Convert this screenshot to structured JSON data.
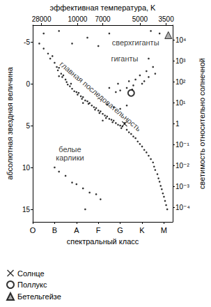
{
  "chart_data": {
    "type": "scatter",
    "xlabel": "спектральный класс",
    "ylabel": "абсолютная звездная величина",
    "y2label": "светимость относительно солнечной",
    "x2label": "эффективная температура, K",
    "xlim": [
      0,
      6.4
    ],
    "xticks": [
      {
        "value": 0,
        "label": "O"
      },
      {
        "value": 1,
        "label": "B"
      },
      {
        "value": 2,
        "label": "A"
      },
      {
        "value": 3,
        "label": "F"
      },
      {
        "value": 4,
        "label": "G"
      },
      {
        "value": 5,
        "label": "K"
      },
      {
        "value": 6,
        "label": "M"
      }
    ],
    "x2ticks": [
      {
        "value": 28000,
        "x": 0.4
      },
      {
        "value": 10000,
        "x": 2.05
      },
      {
        "value": 7000,
        "x": 3.2
      },
      {
        "value": 5000,
        "x": 4.9
      },
      {
        "value": 3500,
        "x": 6.1
      }
    ],
    "ylim": [
      16.5,
      -7
    ],
    "yticks": [
      -5,
      0,
      5,
      10,
      15
    ],
    "y2lim": [
      2.089e-05,
      52481
    ],
    "y2ticks": [
      {
        "value": 10000,
        "label": "10⁴"
      },
      {
        "value": 1000,
        "label": "10³"
      },
      {
        "value": 100,
        "label": "10²"
      },
      {
        "value": 10,
        "label": "10¹"
      },
      1,
      {
        "value": 0.1,
        "label": "10⁻¹"
      },
      {
        "value": 0.01,
        "label": "10⁻²"
      },
      {
        "value": 0.001,
        "label": "10⁻³"
      },
      {
        "value": 0.0001,
        "label": "10⁻⁴"
      }
    ],
    "log": "y2",
    "grid": false,
    "legend": "bottom-left",
    "series": [
      {
        "marker": "dot",
        "color": "#000000",
        "points": [
          [
            0.3,
            -4.8
          ],
          [
            0.5,
            -4.2
          ],
          [
            0.7,
            -3.6
          ],
          [
            0.8,
            -3.0
          ],
          [
            0.9,
            -3.3
          ],
          [
            1.0,
            -2.5
          ],
          [
            1.1,
            -2.0
          ],
          [
            1.15,
            -1.6
          ],
          [
            1.2,
            -1.9
          ],
          [
            1.3,
            -1.2
          ],
          [
            1.35,
            -0.8
          ],
          [
            1.4,
            -1.0
          ],
          [
            1.5,
            -0.5
          ],
          [
            1.55,
            -0.2
          ],
          [
            1.6,
            0.1
          ],
          [
            1.7,
            0.3
          ],
          [
            1.75,
            0.0
          ],
          [
            1.8,
            0.6
          ],
          [
            1.9,
            0.9
          ],
          [
            2.0,
            1.0
          ],
          [
            2.05,
            1.3
          ],
          [
            2.1,
            1.1
          ],
          [
            2.2,
            1.5
          ],
          [
            2.25,
            1.8
          ],
          [
            2.3,
            1.6
          ],
          [
            2.4,
            2.0
          ],
          [
            2.5,
            2.1
          ],
          [
            2.55,
            2.4
          ],
          [
            2.6,
            2.3
          ],
          [
            2.7,
            2.6
          ],
          [
            2.8,
            2.8
          ],
          [
            2.85,
            3.1
          ],
          [
            2.9,
            2.9
          ],
          [
            3.0,
            3.2
          ],
          [
            3.05,
            3.5
          ],
          [
            3.1,
            3.3
          ],
          [
            3.2,
            3.6
          ],
          [
            3.3,
            3.8
          ],
          [
            3.35,
            4.1
          ],
          [
            3.4,
            3.9
          ],
          [
            3.5,
            4.2
          ],
          [
            3.6,
            4.3
          ],
          [
            3.65,
            4.6
          ],
          [
            3.7,
            4.4
          ],
          [
            3.8,
            4.7
          ],
          [
            3.9,
            4.9
          ],
          [
            4.0,
            5.0
          ],
          [
            4.05,
            5.3
          ],
          [
            4.1,
            5.1
          ],
          [
            4.3,
            5.5
          ],
          [
            4.4,
            5.8
          ],
          [
            4.5,
            6.0
          ],
          [
            4.6,
            6.3
          ],
          [
            4.7,
            6.5
          ],
          [
            4.8,
            6.9
          ],
          [
            4.9,
            7.2
          ],
          [
            5.0,
            7.5
          ],
          [
            5.1,
            7.9
          ],
          [
            5.2,
            8.2
          ],
          [
            5.3,
            8.6
          ],
          [
            5.4,
            9.0
          ],
          [
            5.5,
            9.4
          ],
          [
            5.55,
            9.9
          ],
          [
            5.6,
            10.3
          ],
          [
            5.7,
            10.8
          ],
          [
            5.75,
            11.3
          ],
          [
            5.8,
            11.7
          ],
          [
            5.85,
            12.2
          ],
          [
            5.9,
            12.6
          ],
          [
            5.95,
            13.1
          ],
          [
            6.0,
            13.5
          ],
          [
            6.05,
            14.0
          ],
          [
            6.1,
            14.5
          ],
          [
            6.15,
            15.0
          ],
          [
            1.2,
            -0.9
          ],
          [
            2.3,
            2.3
          ],
          [
            3.2,
            4.4
          ],
          [
            4.2,
            4.7
          ],
          [
            4.0,
            0.8
          ],
          [
            4.3,
            0.5
          ],
          [
            4.4,
            -0.3
          ],
          [
            4.6,
            0.2
          ],
          [
            4.7,
            -0.5
          ],
          [
            4.9,
            -1.0
          ],
          [
            5.0,
            0.0
          ],
          [
            5.2,
            -1.5
          ],
          [
            5.3,
            -0.8
          ],
          [
            5.5,
            -2.0
          ],
          [
            5.6,
            -1.2
          ],
          [
            3.8,
            1.0
          ],
          [
            3.5,
            0.5
          ],
          [
            4.55,
            0.7
          ],
          [
            5.1,
            -0.3
          ],
          [
            3.9,
            0.0
          ],
          [
            3.4,
            2.5
          ],
          [
            3.7,
            2.8
          ],
          [
            4.0,
            3.0
          ],
          [
            4.3,
            2.6
          ],
          [
            0.5,
            -6.0
          ],
          [
            1.2,
            -6.3
          ],
          [
            2.5,
            -5.5
          ],
          [
            3.5,
            -6.0
          ],
          [
            5.4,
            -6.3
          ],
          [
            5.8,
            -6.0
          ],
          [
            1.8,
            -4.8
          ],
          [
            3.0,
            -4.5
          ],
          [
            5.3,
            -3.0
          ],
          [
            1.2,
            10.5
          ],
          [
            1.5,
            11.0
          ],
          [
            1.8,
            11.8
          ],
          [
            2.0,
            12.0
          ],
          [
            2.3,
            12.5
          ],
          [
            2.6,
            13.0
          ],
          [
            2.9,
            13.2
          ],
          [
            3.1,
            13.8
          ],
          [
            1.0,
            10.0
          ],
          [
            2.4,
            15.0
          ]
        ]
      },
      {
        "name": "Солнце",
        "marker": "x",
        "color": "#000000",
        "points": [
          [
            4.2,
            4.8
          ]
        ]
      },
      {
        "name": "Поллукс",
        "marker": "circle",
        "color": "#000000",
        "points": [
          [
            4.5,
            1.1
          ]
        ]
      },
      {
        "name": "Бетельгейзе",
        "marker": "triangle",
        "color": "#999999",
        "points": [
          [
            6.2,
            -5.8
          ]
        ]
      }
    ],
    "annotations": [
      {
        "text": "сверхгиганты",
        "x": 4.7,
        "y": -4.9
      },
      {
        "text": "гиганты",
        "x": 4.2,
        "y": -3.0
      },
      {
        "text": "главная последовательность",
        "x": 3.1,
        "y": 1.5
      },
      {
        "text": "белые\nкарлики",
        "x": 1.7,
        "y": 8.3
      }
    ]
  }
}
